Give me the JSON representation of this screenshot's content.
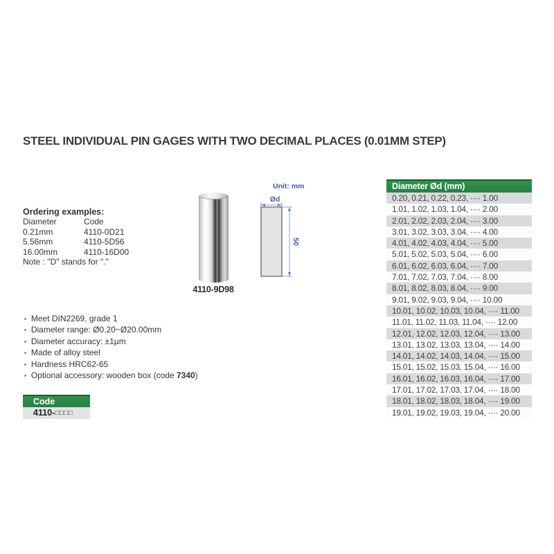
{
  "colors": {
    "accent_green": "#2a7f44",
    "accent_green_dark": "#1b5e31",
    "row_gray": "#d9dadb",
    "drawing_blue": "#44589c",
    "text": "#3a3a3a"
  },
  "title": "STEEL INDIVIDUAL PIN GAGES WITH TWO DECIMAL PLACES (0.01MM STEP)",
  "ordering": {
    "heading": "Ordering examples:",
    "columns": {
      "diameter": "Diameter",
      "code": "Code"
    },
    "rows": [
      {
        "diameter": "0.21mm",
        "code": "4110-0D21"
      },
      {
        "diameter": "5.56mm",
        "code": "4110-5D56"
      },
      {
        "diameter": "16.00mm",
        "code": "4110-16D00"
      }
    ],
    "note": "Note : \"D\" stands for \".\""
  },
  "product": {
    "photo_label": "4110-9D98"
  },
  "drawing": {
    "unit_label": "Unit: mm",
    "diameter_label": "Ød",
    "length_label": "50"
  },
  "diameter_table": {
    "header": "Diameter Ød (mm)",
    "rows": [
      "0.20, 0.21, 0.22, 0.23, ···· 1.00",
      "1.01, 1.02, 1.03, 1.04, ···· 2.00",
      "2.01, 2.02, 2.03, 2.04, ···· 3.00",
      "3.01, 3.02, 3.03, 3.04, ···· 4.00",
      "4.01, 4.02, 4.03, 4.04, ···· 5.00",
      "5.01, 5.02, 5.03, 5.04, ···· 6.00",
      "6.01, 6.02, 6.03, 6.04, ···· 7.00",
      "7.01, 7.02, 7.03, 7.04, ···· 8.00",
      "8.01, 8.02, 8.03, 8.04, ···· 9.00",
      "9.01, 9.02, 9.03, 9.04, ···· 10.00",
      "10.01, 10.02, 10.03, 10.04, ···· 11.00",
      "11.01, 11.02, 11.03, 11.04, ···· 12.00",
      "12.01, 12.02, 12.03, 12.04, ···· 13.00",
      "13.01, 13.02, 13.03, 13.04, ···· 14.00",
      "14.01, 14.02, 14.03, 14.04, ···· 15.00",
      "15.01, 15.02, 15.03, 15.04, ···· 16.00",
      "16.01, 16.02, 16.03, 16.04, ···· 17.00",
      "17.01, 17.02, 17.03, 17.04, ···· 18.00",
      "18.01, 18.02, 18.03, 18.04, ···· 19.00",
      "19.01, 19.02, 19.03, 19.04, ···· 20.00"
    ]
  },
  "features": {
    "bullet": "▪",
    "items": [
      {
        "pre": "Meet DIN2269, grade 1",
        "bold": "",
        "post": ""
      },
      {
        "pre": "Diameter range: Ø0.20~Ø20.00mm",
        "bold": "",
        "post": ""
      },
      {
        "pre": "Diameter accuracy: ±1μm",
        "bold": "",
        "post": ""
      },
      {
        "pre": "Made of alloy steel",
        "bold": "",
        "post": ""
      },
      {
        "pre": "Hardness HRC62-65",
        "bold": "",
        "post": ""
      },
      {
        "pre": "Optional accessory: wooden box (code ",
        "bold": "7340",
        "post": ")"
      }
    ]
  },
  "code_box": {
    "header": "Code",
    "code_prefix": "4110-",
    "placeholder_boxes": "□□□□"
  }
}
